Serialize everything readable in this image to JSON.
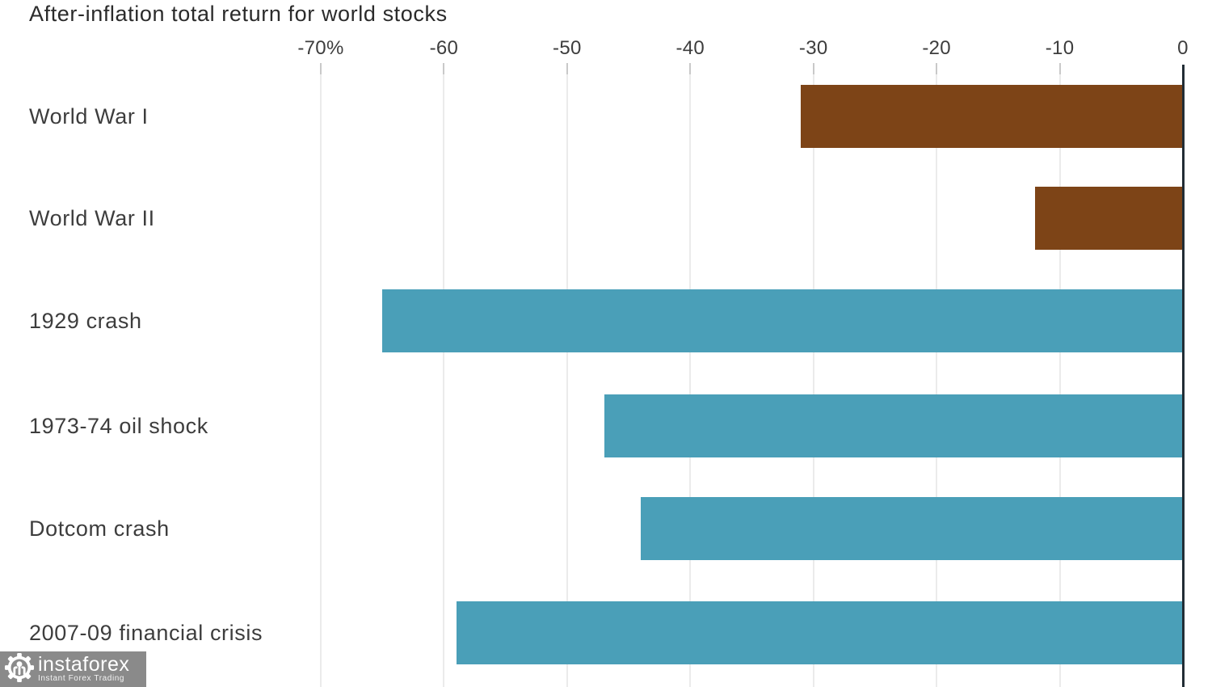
{
  "title": "After-inflation total return for world stocks",
  "chart_data": {
    "type": "bar",
    "orientation": "horizontal",
    "title": "After-inflation total return for world stocks",
    "categories": [
      "World War I",
      "World War II",
      "1929 crash",
      "1973-74 oil shock",
      "Dotcom crash",
      "2007-09 financial crisis"
    ],
    "values": [
      -31,
      -12,
      -65,
      -47,
      -44,
      -59
    ],
    "unit": "%",
    "bar_colors": [
      "#7d4417",
      "#7d4417",
      "#4a9fb8",
      "#4a9fb8",
      "#4a9fb8",
      "#4a9fb8"
    ],
    "color_legend": {
      "wars": "#7d4417",
      "market_crashes": "#4a9fb8"
    },
    "x_ticks": [
      -70,
      -60,
      -50,
      -40,
      -30,
      -20,
      -10,
      0
    ],
    "x_tick_labels": [
      "-70%",
      "-60",
      "-50",
      "-40",
      "-30",
      "-20",
      "-10",
      "0"
    ],
    "xlim": [
      -70,
      0
    ],
    "grid": true,
    "axis_position": "right-zero-baseline",
    "tick_labels_position": "top"
  },
  "colors": {
    "background": "#ffffff",
    "title_text": "#2b2b2b",
    "label_text": "#3d3d3d",
    "gridline": "#ebebeb",
    "tick_mark": "#c9c9c9",
    "zero_axis": "#222d35",
    "watermark_bg": "#8a8a8a",
    "watermark_text": "#ffffff"
  },
  "watermark": {
    "brand": "instaforex",
    "tagline": "Instant Forex Trading"
  }
}
